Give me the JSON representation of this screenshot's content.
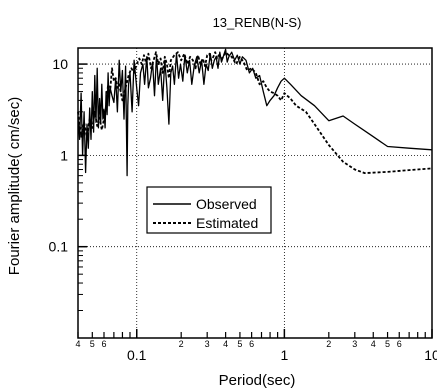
{
  "chart_data": {
    "type": "line",
    "title": "13_RENB(N-S)",
    "xlabel": "Period(sec)",
    "ylabel": "Fourier amplitude( cm/sec)",
    "xscale": "log",
    "yscale": "log",
    "xlim": [
      0.04,
      10
    ],
    "ylim": [
      0.01,
      15
    ],
    "grid": "dotted, at decades",
    "legend_position": "center-left",
    "x_major_ticks": [
      {
        "value": 0.1,
        "label": "0.1"
      },
      {
        "value": 1,
        "label": "1"
      },
      {
        "value": 10,
        "label": "10"
      }
    ],
    "x_minor_ticks": [
      {
        "value": 0.04,
        "label": "4"
      },
      {
        "value": 0.05,
        "label": "5"
      },
      {
        "value": 0.06,
        "label": "6"
      },
      {
        "value": 0.07,
        "label": ""
      },
      {
        "value": 0.08,
        "label": ""
      },
      {
        "value": 0.09,
        "label": ""
      },
      {
        "value": 0.2,
        "label": "2"
      },
      {
        "value": 0.3,
        "label": "3"
      },
      {
        "value": 0.4,
        "label": "4"
      },
      {
        "value": 0.5,
        "label": "5"
      },
      {
        "value": 0.6,
        "label": "6"
      },
      {
        "value": 0.7,
        "label": ""
      },
      {
        "value": 0.8,
        "label": ""
      },
      {
        "value": 0.9,
        "label": ""
      },
      {
        "value": 2,
        "label": "2"
      },
      {
        "value": 3,
        "label": "3"
      },
      {
        "value": 4,
        "label": "4"
      },
      {
        "value": 5,
        "label": "5"
      },
      {
        "value": 6,
        "label": "6"
      },
      {
        "value": 7,
        "label": ""
      },
      {
        "value": 8,
        "label": ""
      },
      {
        "value": 9,
        "label": ""
      }
    ],
    "y_major_ticks": [
      {
        "value": 10,
        "label": "10"
      },
      {
        "value": 1,
        "label": "1"
      },
      {
        "value": 0.1,
        "label": "0.1"
      }
    ],
    "series": [
      {
        "name": "Observed",
        "style": "solid",
        "points": [
          [
            0.04,
            2.6
          ],
          [
            0.041,
            1.5
          ],
          [
            0.042,
            4.8
          ],
          [
            0.043,
            1.0
          ],
          [
            0.044,
            3.0
          ],
          [
            0.045,
            0.65
          ],
          [
            0.046,
            2.2
          ],
          [
            0.047,
            1.2
          ],
          [
            0.048,
            3.3
          ],
          [
            0.049,
            1.5
          ],
          [
            0.05,
            5.0
          ],
          [
            0.051,
            1.8
          ],
          [
            0.052,
            7.5
          ],
          [
            0.053,
            2.3
          ],
          [
            0.054,
            9.0
          ],
          [
            0.055,
            2.0
          ],
          [
            0.056,
            4.2
          ],
          [
            0.057,
            2.3
          ],
          [
            0.058,
            6.0
          ],
          [
            0.059,
            2.5
          ],
          [
            0.06,
            3.2
          ],
          [
            0.061,
            2.0
          ],
          [
            0.062,
            5.0
          ],
          [
            0.063,
            2.8
          ],
          [
            0.064,
            8.0
          ],
          [
            0.065,
            3.5
          ],
          [
            0.066,
            5.5
          ],
          [
            0.068,
            4.5
          ],
          [
            0.07,
            3.8
          ],
          [
            0.072,
            7.0
          ],
          [
            0.074,
            3.0
          ],
          [
            0.076,
            11.0
          ],
          [
            0.078,
            5.0
          ],
          [
            0.08,
            8.5
          ],
          [
            0.082,
            2.5
          ],
          [
            0.084,
            9.5
          ],
          [
            0.086,
            0.6
          ],
          [
            0.087,
            3.5
          ],
          [
            0.088,
            6.0
          ],
          [
            0.09,
            8.0
          ],
          [
            0.093,
            3.0
          ],
          [
            0.096,
            11.0
          ],
          [
            0.1,
            5.5
          ],
          [
            0.103,
            3.5
          ],
          [
            0.106,
            8.0
          ],
          [
            0.11,
            10.0
          ],
          [
            0.113,
            6.0
          ],
          [
            0.117,
            12.0
          ],
          [
            0.12,
            5.5
          ],
          [
            0.124,
            7.0
          ],
          [
            0.128,
            10.5
          ],
          [
            0.132,
            4.5
          ],
          [
            0.136,
            12.5
          ],
          [
            0.14,
            6.0
          ],
          [
            0.145,
            9.0
          ],
          [
            0.15,
            4.0
          ],
          [
            0.155,
            11.0
          ],
          [
            0.16,
            5.5
          ],
          [
            0.165,
            2.2
          ],
          [
            0.17,
            8.0
          ],
          [
            0.175,
            9.5
          ],
          [
            0.18,
            6.0
          ],
          [
            0.186,
            13.0
          ],
          [
            0.192,
            7.0
          ],
          [
            0.198,
            10.0
          ],
          [
            0.205,
            6.5
          ],
          [
            0.212,
            12.5
          ],
          [
            0.22,
            8.0
          ],
          [
            0.228,
            11.0
          ],
          [
            0.236,
            6.0
          ],
          [
            0.245,
            9.5
          ],
          [
            0.255,
            12.0
          ],
          [
            0.265,
            8.0
          ],
          [
            0.275,
            11.0
          ],
          [
            0.285,
            6.0
          ],
          [
            0.295,
            10.0
          ],
          [
            0.305,
            8.5
          ],
          [
            0.315,
            13.0
          ],
          [
            0.325,
            9.0
          ],
          [
            0.335,
            11.0
          ],
          [
            0.345,
            12.0
          ],
          [
            0.355,
            9.0
          ],
          [
            0.365,
            13.5
          ],
          [
            0.375,
            10.5
          ],
          [
            0.385,
            12.0
          ],
          [
            0.4,
            14.5
          ],
          [
            0.41,
            10.5
          ],
          [
            0.42,
            12.0
          ],
          [
            0.44,
            13.5
          ],
          [
            0.46,
            11.0
          ],
          [
            0.48,
            12.5
          ],
          [
            0.5,
            10.0
          ],
          [
            0.52,
            12.0
          ],
          [
            0.55,
            11.0
          ],
          [
            0.58,
            8.0
          ],
          [
            0.61,
            9.0
          ],
          [
            0.64,
            7.0
          ],
          [
            0.68,
            7.5
          ],
          [
            0.72,
            5.0
          ],
          [
            0.76,
            3.5
          ],
          [
            0.8,
            4.0
          ],
          [
            0.85,
            4.5
          ],
          [
            0.9,
            5.5
          ],
          [
            0.95,
            6.5
          ],
          [
            1.0,
            7.0
          ],
          [
            1.1,
            6.0
          ],
          [
            1.3,
            4.5
          ],
          [
            1.6,
            3.5
          ],
          [
            2.0,
            2.4
          ],
          [
            2.5,
            2.7
          ],
          [
            3.0,
            2.2
          ],
          [
            4.0,
            1.6
          ],
          [
            5.0,
            1.25
          ],
          [
            7.0,
            1.2
          ],
          [
            10.0,
            1.15
          ]
        ]
      },
      {
        "name": "Estimated",
        "style": "dashed",
        "points": [
          [
            0.04,
            3.0
          ],
          [
            0.042,
            1.6
          ],
          [
            0.044,
            2.3
          ],
          [
            0.046,
            1.6
          ],
          [
            0.048,
            2.5
          ],
          [
            0.05,
            2.0
          ],
          [
            0.052,
            3.0
          ],
          [
            0.054,
            2.1
          ],
          [
            0.056,
            2.6
          ],
          [
            0.058,
            1.9
          ],
          [
            0.06,
            2.5
          ],
          [
            0.062,
            3.5
          ],
          [
            0.064,
            6.0
          ],
          [
            0.066,
            5.0
          ],
          [
            0.068,
            9.0
          ],
          [
            0.07,
            6.5
          ],
          [
            0.072,
            7.0
          ],
          [
            0.074,
            5.5
          ],
          [
            0.076,
            6.0
          ],
          [
            0.08,
            4.0
          ],
          [
            0.084,
            5.5
          ],
          [
            0.088,
            7.5
          ],
          [
            0.092,
            9.0
          ],
          [
            0.096,
            8.0
          ],
          [
            0.1,
            10.0
          ],
          [
            0.104,
            11.5
          ],
          [
            0.108,
            10.0
          ],
          [
            0.112,
            12.5
          ],
          [
            0.116,
            10.0
          ],
          [
            0.12,
            13.0
          ],
          [
            0.125,
            9.0
          ],
          [
            0.13,
            11.0
          ],
          [
            0.135,
            13.5
          ],
          [
            0.14,
            10.0
          ],
          [
            0.145,
            11.5
          ],
          [
            0.15,
            8.0
          ],
          [
            0.155,
            12.0
          ],
          [
            0.16,
            10.0
          ],
          [
            0.165,
            7.0
          ],
          [
            0.17,
            11.0
          ],
          [
            0.18,
            12.5
          ],
          [
            0.19,
            13.5
          ],
          [
            0.2,
            11.0
          ],
          [
            0.21,
            13.0
          ],
          [
            0.22,
            10.0
          ],
          [
            0.23,
            12.0
          ],
          [
            0.24,
            11.0
          ],
          [
            0.25,
            9.0
          ],
          [
            0.26,
            12.5
          ],
          [
            0.27,
            10.0
          ],
          [
            0.28,
            11.5
          ],
          [
            0.29,
            9.5
          ],
          [
            0.3,
            12.5
          ],
          [
            0.31,
            13.0
          ],
          [
            0.32,
            11.0
          ],
          [
            0.33,
            12.0
          ],
          [
            0.34,
            13.5
          ],
          [
            0.35,
            11.5
          ],
          [
            0.36,
            12.5
          ],
          [
            0.38,
            11.5
          ],
          [
            0.4,
            13.5
          ],
          [
            0.42,
            12.5
          ],
          [
            0.44,
            12.0
          ],
          [
            0.47,
            10.0
          ],
          [
            0.5,
            12.0
          ],
          [
            0.53,
            10.5
          ],
          [
            0.56,
            8.5
          ],
          [
            0.6,
            9.0
          ],
          [
            0.64,
            8.0
          ],
          [
            0.68,
            6.0
          ],
          [
            0.72,
            6.5
          ],
          [
            0.76,
            5.5
          ],
          [
            0.8,
            5.0
          ],
          [
            0.85,
            4.8
          ],
          [
            0.9,
            4.5
          ],
          [
            0.95,
            4.0
          ],
          [
            1.0,
            4.8
          ],
          [
            1.1,
            4.2
          ],
          [
            1.2,
            3.5
          ],
          [
            1.4,
            3.0
          ],
          [
            1.6,
            2.2
          ],
          [
            2.0,
            1.3
          ],
          [
            2.5,
            0.85
          ],
          [
            3.0,
            0.7
          ],
          [
            3.5,
            0.64
          ],
          [
            5.0,
            0.66
          ],
          [
            7.0,
            0.69
          ],
          [
            10.0,
            0.72
          ]
        ]
      }
    ]
  }
}
